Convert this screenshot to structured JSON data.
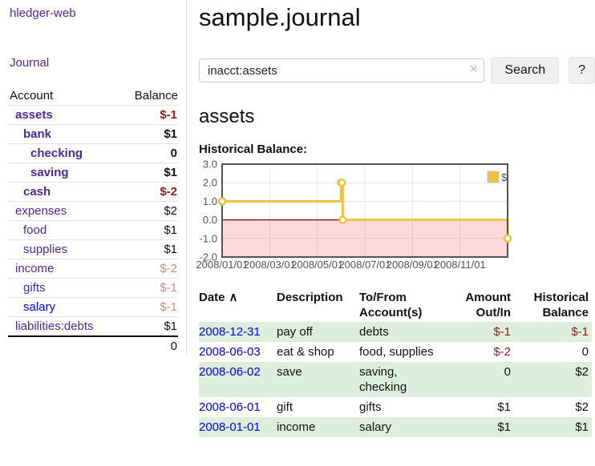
{
  "app": {
    "title": "hledger-web"
  },
  "colors": {
    "link_purple": "#4a2a96",
    "link_blue": "#0000ee",
    "negative": "#8f1d1d",
    "negative_soft": "#c98b8b",
    "green_row": "#ddeedd",
    "chart_line": "#edc240"
  },
  "sidebar": {
    "journal_link": "Journal",
    "table": {
      "headers": {
        "account": "Account",
        "balance": "Balance"
      },
      "rows": [
        {
          "name": "assets",
          "indent": 1,
          "bold": true,
          "balance": "$-1",
          "neg": "strong"
        },
        {
          "name": "bank",
          "indent": 2,
          "bold": true,
          "balance": "$1"
        },
        {
          "name": "checking",
          "indent": 3,
          "bold": true,
          "balance": "0"
        },
        {
          "name": "saving",
          "indent": 3,
          "bold": true,
          "balance": "$1"
        },
        {
          "name": "cash",
          "indent": 2,
          "bold": true,
          "balance": "$-2",
          "neg": "strong"
        },
        {
          "name": "expenses",
          "indent": 1,
          "bold": false,
          "balance": "$2"
        },
        {
          "name": "food",
          "indent": 2,
          "bold": false,
          "balance": "$1"
        },
        {
          "name": "supplies",
          "indent": 2,
          "bold": false,
          "balance": "$1"
        },
        {
          "name": "income",
          "indent": 1,
          "bold": false,
          "balance": "$-2",
          "neg": "soft"
        },
        {
          "name": "gifts",
          "indent": 2,
          "bold": false,
          "balance": "$-1",
          "neg": "soft"
        },
        {
          "name": "salary",
          "indent": 2,
          "bold": false,
          "balance": "$-1",
          "neg": "soft",
          "link_blue": true
        },
        {
          "name": "liabilities:debts",
          "indent": 1,
          "bold": false,
          "balance": "$1"
        }
      ],
      "total": "0"
    }
  },
  "header": {
    "title": "sample.journal"
  },
  "search": {
    "value": "inacct:assets",
    "clear_icon": "×",
    "button_label": "Search",
    "help_label": "?"
  },
  "account_page": {
    "heading": "assets",
    "chart_label": "Historical Balance:"
  },
  "chart_data": {
    "type": "line",
    "step": true,
    "title": "Historical Balance",
    "series": [
      {
        "name": "$",
        "color": "#edc240",
        "points": [
          [
            "2008-01-01",
            1
          ],
          [
            "2008-06-01",
            2
          ],
          [
            "2008-06-02",
            2
          ],
          [
            "2008-06-03",
            0
          ],
          [
            "2008-12-31",
            -1
          ]
        ]
      }
    ],
    "x_ticks": [
      "2008/01/01",
      "2008/03/01",
      "2008/05/01",
      "2008/07/01",
      "2008/09/01",
      "2008/11/01"
    ],
    "y_ticks": [
      3.0,
      2.0,
      1.0,
      0.0,
      -1.0,
      -2.0
    ],
    "ylim": [
      -2,
      3
    ],
    "x_range_months": 12,
    "grid": true,
    "negative_region_color": "#fcdada",
    "zero_line_color": "#8b0000",
    "legend": {
      "label": "$",
      "position": "top-right"
    }
  },
  "register": {
    "sort_icon": "∧",
    "columns": [
      {
        "lines": [
          "Date"
        ],
        "align": "left",
        "sorted": true
      },
      {
        "lines": [
          "Description"
        ],
        "align": "left"
      },
      {
        "lines": [
          "To/From",
          "Account(s)"
        ],
        "align": "left"
      },
      {
        "lines": [
          "Amount",
          "Out/In"
        ],
        "align": "right"
      },
      {
        "lines": [
          "Historical",
          "Balance"
        ],
        "align": "right"
      }
    ],
    "rows": [
      {
        "date": "2008-12-31",
        "description": "pay off",
        "accounts": "debts",
        "amount": "$-1",
        "amount_neg": true,
        "balance": "$-1",
        "balance_neg": true
      },
      {
        "date": "2008-06-03",
        "description": "eat & shop",
        "accounts": "food, supplies",
        "amount": "$-2",
        "amount_neg": true,
        "balance": "0",
        "balance_neg": false
      },
      {
        "date": "2008-06-02",
        "description": "save",
        "accounts": "saving,\nchecking",
        "amount": "0",
        "amount_neg": false,
        "balance": "$2",
        "balance_neg": false
      },
      {
        "date": "2008-06-01",
        "description": "gift",
        "accounts": "gifts",
        "amount": "$1",
        "amount_neg": false,
        "balance": "$2",
        "balance_neg": false
      },
      {
        "date": "2008-01-01",
        "description": "income",
        "accounts": "salary",
        "amount": "$1",
        "amount_neg": false,
        "balance": "$1",
        "balance_neg": false
      }
    ]
  }
}
